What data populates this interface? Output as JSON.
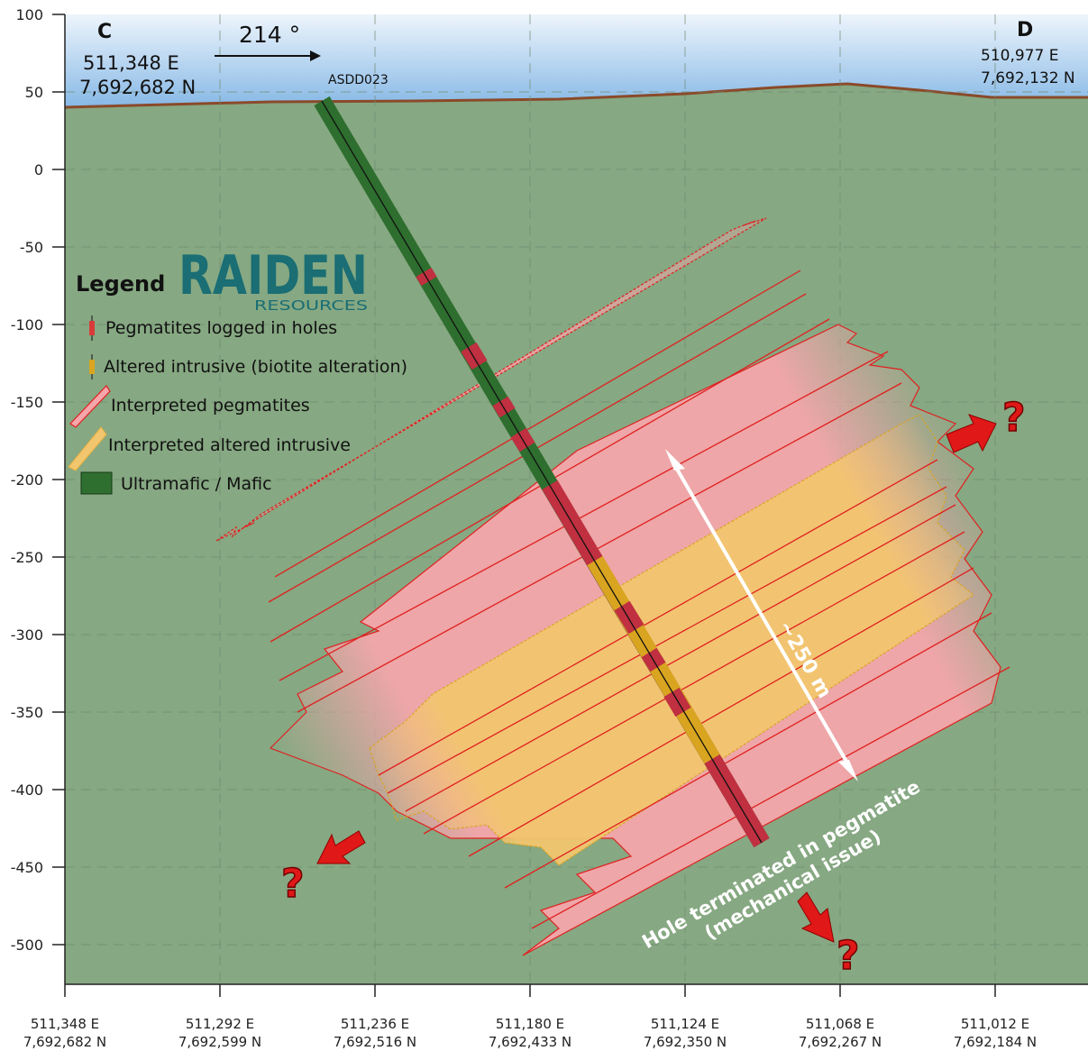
{
  "section": {
    "start_label": "C",
    "start_easting": "511,348 E",
    "start_northing": "7,692,682 N",
    "end_label": "D",
    "end_easting": "510,977 E",
    "end_northing": "7,692,132 N",
    "azimuth": "214 °",
    "hole_id": "ASDD023",
    "width_annotation": "~250 m",
    "hole_note_line1": "Hole terminated in pegmatite",
    "hole_note_line2": "(mechanical issue)",
    "question_mark": "?"
  },
  "legend": {
    "title": "Legend",
    "logo_word": "RAIDEN",
    "logo_sub": "RESOURCES",
    "items": [
      {
        "label": "Pegmatites logged in holes",
        "color": "#d93b3b"
      },
      {
        "label": "Altered intrusive (biotite alteration)",
        "color": "#d9a520"
      },
      {
        "label": "Interpreted pegmatites",
        "color": "#f4a6aa"
      },
      {
        "label": "Interpreted altered intrusive",
        "color": "#f2c66e"
      },
      {
        "label": "Ultramafic / Mafic",
        "color": "#2e6e2e"
      }
    ]
  },
  "axes": {
    "y_ticks": [
      "100",
      "50",
      "0",
      "-50",
      "-100",
      "-150",
      "-200",
      "-250",
      "-300",
      "-350",
      "-400",
      "-450",
      "-500"
    ],
    "x_ticks": [
      {
        "e": "511,348 E",
        "n": "7,692,682 N"
      },
      {
        "e": "511,292 E",
        "n": "7,692,599 N"
      },
      {
        "e": "511,236 E",
        "n": "7,692,516 N"
      },
      {
        "e": "511,180 E",
        "n": "7,692,433 N"
      },
      {
        "e": "511,124 E",
        "n": "7,692,350 N"
      },
      {
        "e": "511,068 E",
        "n": "7,692,267 N"
      },
      {
        "e": "511,012 E",
        "n": "7,692,184 N"
      }
    ]
  },
  "colors": {
    "sky": "#a9cdef",
    "ground": "#86a882",
    "topography": "#8a4a2a",
    "pegmatite": "#f4a6aa",
    "altered": "#f2c66e",
    "outline": "#e02020",
    "mafic": "#2e6e2e",
    "arrow": "#e01818"
  }
}
